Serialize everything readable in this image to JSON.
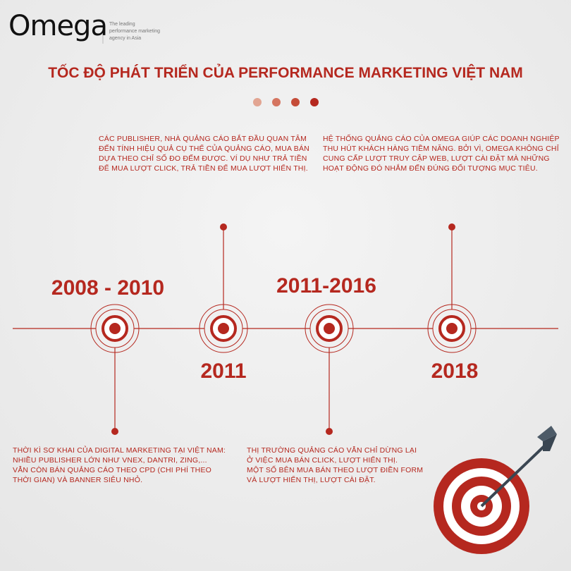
{
  "header": {
    "logo": "Omega",
    "tagline": [
      "The leading",
      "performance marketing",
      "agency in Asia"
    ]
  },
  "title": "TỐC ĐỘ PHÁT TRIỂN CỦA PERFORMANCE MARKETING VIỆT NAM",
  "timeline": [
    {
      "year": "2008 - 2010",
      "text": [
        "THỜI KÌ SƠ KHAI CỦA DIGITAL MARKETING TẠI VIỆT NAM:",
        "NHIỀU PUBLISHER LỚN NHƯ VNEX, DANTRI, ZING,...",
        "VẪN CÒN BÁN QUẢNG CÁO THEO CPD (CHI PHÍ THEO",
        "THỜI GIAN) VÀ BANNER SIÊU NHỎ."
      ]
    },
    {
      "year": "2011",
      "text": [
        "CÁC PUBLISHER, NHÀ QUẢNG CÁO BẮT ĐẦU QUAN TÂM",
        "ĐẾN TÍNH HIỆU QUẢ CỤ THỂ CỦA QUẢNG CÁO, MUA BÁN",
        "DỰA THEO CHỈ SỐ ĐO ĐẾM ĐƯỢC. VÍ DỤ NHƯ TRẢ TIỀN",
        "ĐỂ MUA LƯỢT CLICK, TRẢ TIỀN ĐỂ MUA LƯỢT HIỂN THỊ."
      ]
    },
    {
      "year": "2011-2016",
      "text": [
        "THỊ TRƯỜNG QUẢNG CÁO VẪN CHỈ DỪNG LẠI",
        "Ở VIỆC MUA BÁN CLICK, LƯỢT HIỂN THỊ.",
        "MỘT SỐ BÊN MUA BÁN THEO LƯỢT ĐIỀN FORM",
        "VÀ LƯỢT HIỂN THỊ, LƯỢT CÀI ĐẶT."
      ]
    },
    {
      "year": "2018",
      "text": [
        "HỆ THỐNG QUẢNG CÁO CỦA OMEGA GIÚP CÁC DOANH NGHIỆP",
        "THU HÚT KHÁCH HÀNG TIỀM NĂNG. BỞI VÌ, OMEGA KHÔNG CHỈ",
        "CUNG CẤP LƯỢT TRUY CẬP WEB, LƯỢT CÀI ĐẶT MÀ NHỮNG",
        "HOẠT ĐỘNG ĐÓ NHẮM ĐẾN ĐÚNG ĐỐI TƯỢNG MỤC TIÊU."
      ]
    }
  ]
}
